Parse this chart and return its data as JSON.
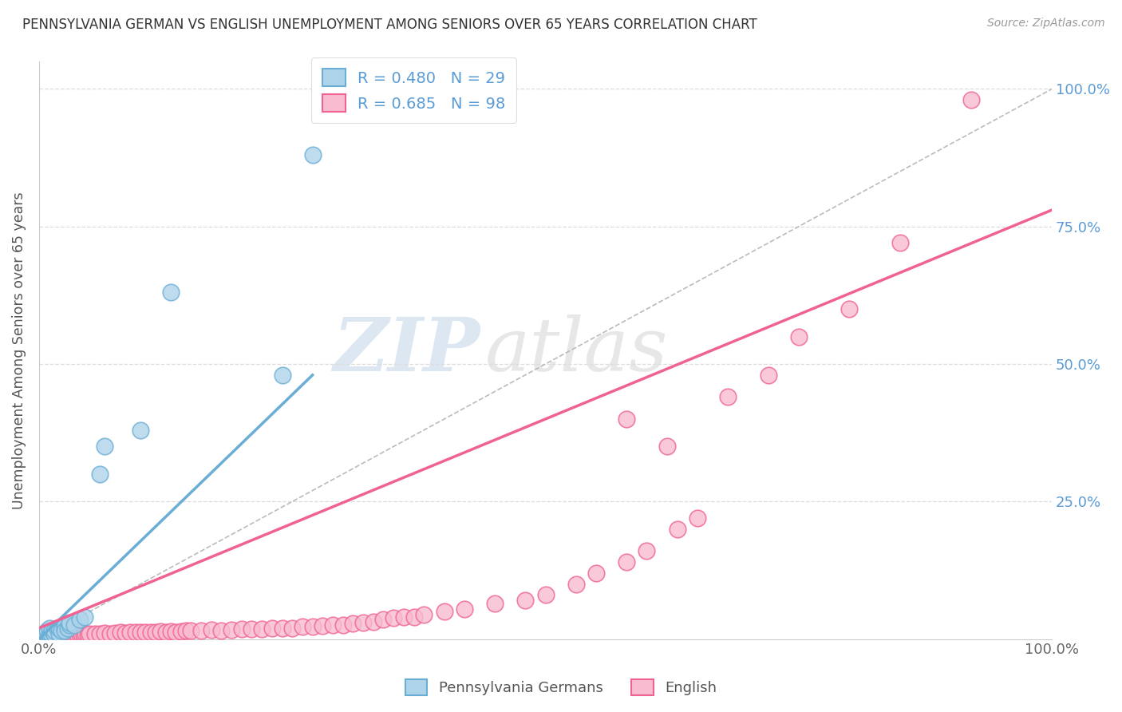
{
  "title": "PENNSYLVANIA GERMAN VS ENGLISH UNEMPLOYMENT AMONG SENIORS OVER 65 YEARS CORRELATION CHART",
  "source": "Source: ZipAtlas.com",
  "ylabel": "Unemployment Among Seniors over 65 years",
  "blue_color": "#6aaed6",
  "pink_color": "#f06292",
  "blue_fill": "#aed4ea",
  "pink_fill": "#f8bbd0",
  "watermark_zip": "ZIP",
  "watermark_atlas": "atlas",
  "title_fontsize": 12,
  "source_fontsize": 10,
  "blue_R": 0.48,
  "blue_N": 29,
  "pink_R": 0.685,
  "pink_N": 98,
  "blue_line": [
    [
      0.0,
      0.0
    ],
    [
      0.27,
      0.48
    ]
  ],
  "pink_line": [
    [
      0.0,
      0.02
    ],
    [
      1.0,
      0.78
    ]
  ],
  "diag_line": [
    [
      0.0,
      0.0
    ],
    [
      1.0,
      1.0
    ]
  ],
  "blue_x": [
    0.005,
    0.007,
    0.008,
    0.01,
    0.01,
    0.01,
    0.012,
    0.013,
    0.015,
    0.015,
    0.018,
    0.02,
    0.02,
    0.022,
    0.025,
    0.025,
    0.025,
    0.028,
    0.03,
    0.03,
    0.035,
    0.04,
    0.045,
    0.06,
    0.065,
    0.1,
    0.13,
    0.27,
    0.24
  ],
  "blue_y": [
    0.005,
    0.01,
    0.015,
    0.005,
    0.01,
    0.02,
    0.01,
    0.015,
    0.008,
    0.015,
    0.02,
    0.01,
    0.02,
    0.015,
    0.02,
    0.025,
    0.015,
    0.02,
    0.025,
    0.03,
    0.025,
    0.035,
    0.04,
    0.3,
    0.35,
    0.38,
    0.63,
    0.88,
    0.48
  ],
  "pink_x": [
    0.005,
    0.006,
    0.007,
    0.008,
    0.009,
    0.01,
    0.011,
    0.012,
    0.013,
    0.014,
    0.015,
    0.016,
    0.017,
    0.018,
    0.019,
    0.02,
    0.021,
    0.022,
    0.023,
    0.024,
    0.025,
    0.026,
    0.027,
    0.028,
    0.029,
    0.03,
    0.032,
    0.034,
    0.036,
    0.038,
    0.04,
    0.042,
    0.044,
    0.046,
    0.048,
    0.05,
    0.055,
    0.06,
    0.065,
    0.07,
    0.075,
    0.08,
    0.085,
    0.09,
    0.095,
    0.1,
    0.105,
    0.11,
    0.115,
    0.12,
    0.125,
    0.13,
    0.135,
    0.14,
    0.145,
    0.15,
    0.16,
    0.17,
    0.18,
    0.19,
    0.2,
    0.21,
    0.22,
    0.23,
    0.24,
    0.25,
    0.26,
    0.27,
    0.28,
    0.29,
    0.3,
    0.31,
    0.32,
    0.33,
    0.34,
    0.35,
    0.36,
    0.37,
    0.38,
    0.4,
    0.42,
    0.45,
    0.48,
    0.5,
    0.53,
    0.55,
    0.58,
    0.6,
    0.63,
    0.65,
    0.58,
    0.62,
    0.68,
    0.72,
    0.75,
    0.8,
    0.85,
    0.92
  ],
  "pink_y": [
    0.005,
    0.003,
    0.005,
    0.004,
    0.006,
    0.005,
    0.004,
    0.006,
    0.005,
    0.007,
    0.005,
    0.006,
    0.007,
    0.005,
    0.006,
    0.007,
    0.005,
    0.006,
    0.007,
    0.006,
    0.007,
    0.005,
    0.006,
    0.007,
    0.008,
    0.006,
    0.007,
    0.008,
    0.007,
    0.008,
    0.008,
    0.009,
    0.008,
    0.009,
    0.008,
    0.009,
    0.01,
    0.01,
    0.011,
    0.01,
    0.011,
    0.012,
    0.011,
    0.012,
    0.013,
    0.012,
    0.013,
    0.012,
    0.013,
    0.014,
    0.013,
    0.014,
    0.013,
    0.014,
    0.015,
    0.015,
    0.016,
    0.017,
    0.016,
    0.017,
    0.018,
    0.018,
    0.019,
    0.02,
    0.02,
    0.02,
    0.022,
    0.022,
    0.024,
    0.025,
    0.025,
    0.028,
    0.03,
    0.032,
    0.035,
    0.038,
    0.04,
    0.04,
    0.045,
    0.05,
    0.055,
    0.065,
    0.07,
    0.08,
    0.1,
    0.12,
    0.14,
    0.16,
    0.2,
    0.22,
    0.4,
    0.35,
    0.44,
    0.48,
    0.55,
    0.6,
    0.72,
    0.98
  ]
}
